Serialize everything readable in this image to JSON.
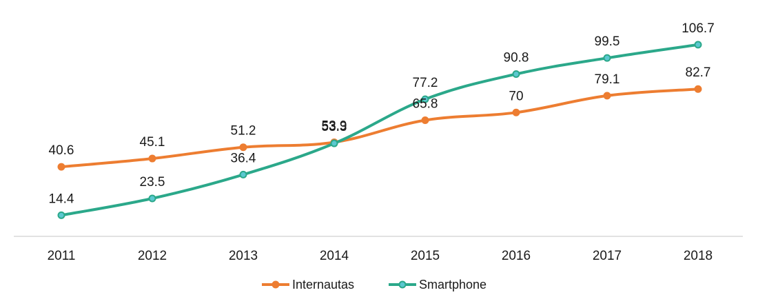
{
  "chart_data": {
    "type": "line",
    "x": [
      "2011",
      "2012",
      "2013",
      "2014",
      "2015",
      "2016",
      "2017",
      "2018"
    ],
    "series": [
      {
        "name": "Internautas",
        "values": [
          40.6,
          45.1,
          51.2,
          53.9,
          65.8,
          70,
          79.1,
          82.7
        ],
        "labels": [
          "40.6",
          "45.1",
          "51.2",
          "53.9",
          "65.8",
          "70",
          "79.1",
          "82.7"
        ],
        "color": "#ED7D31"
      },
      {
        "name": "Smartphone",
        "values": [
          14.4,
          23.5,
          36.4,
          53.3,
          77.2,
          90.8,
          99.5,
          106.7
        ],
        "labels": [
          "14.4",
          "23.5",
          "36.4",
          "53.3",
          "77.2",
          "90.8",
          "99.5",
          "106.7"
        ],
        "color": "#2BA88A",
        "marker_fill": "#5BC8D0"
      }
    ],
    "title": "",
    "xlabel": "",
    "ylabel": "",
    "ylim": [
      0,
      120
    ],
    "grid": false,
    "legend": "bottom"
  }
}
